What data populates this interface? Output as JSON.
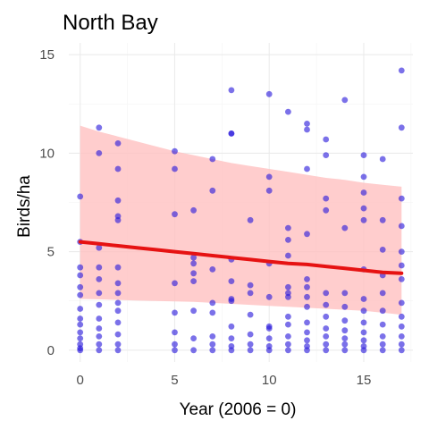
{
  "chart_data": {
    "type": "scatter",
    "title": "North Bay",
    "xlabel": "Year (2006 = 0)",
    "ylabel": "Birds/ha",
    "xlim": [
      -0.6,
      17.6
    ],
    "ylim": [
      -0.6,
      15.6
    ],
    "x_ticks": [
      0,
      5,
      10,
      15
    ],
    "y_ticks": [
      0,
      5,
      10,
      15
    ],
    "x_tick_labels": [
      "0",
      "5",
      "10",
      "15"
    ],
    "y_tick_labels": [
      "0",
      "5",
      "10",
      "15"
    ],
    "grid": true,
    "legend": "none",
    "colors": {
      "points": "#2a1adb",
      "trend_line": "#e61212",
      "ribbon": "#ffc0c0"
    },
    "trend": {
      "x": [
        0,
        1,
        2,
        3,
        4,
        5,
        6,
        7,
        8,
        9,
        10,
        11,
        12,
        13,
        14,
        15,
        16,
        17
      ],
      "fit": [
        5.5,
        5.4,
        5.3,
        5.2,
        5.1,
        5.0,
        4.9,
        4.8,
        4.7,
        4.6,
        4.5,
        4.4,
        4.35,
        4.25,
        4.15,
        4.05,
        3.95,
        3.9
      ],
      "lower": [
        2.6,
        2.58,
        2.55,
        2.52,
        2.5,
        2.47,
        2.45,
        2.4,
        2.35,
        2.3,
        2.25,
        2.2,
        2.15,
        2.1,
        2.05,
        2.0,
        1.9,
        1.8
      ],
      "upper": [
        11.4,
        11.1,
        10.85,
        10.6,
        10.35,
        10.1,
        9.9,
        9.7,
        9.5,
        9.35,
        9.2,
        9.05,
        8.9,
        8.75,
        8.65,
        8.5,
        8.4,
        8.3
      ]
    },
    "points": [
      {
        "x": 0,
        "y": 0.0
      },
      {
        "x": 0,
        "y": 0.1
      },
      {
        "x": 0,
        "y": 0.3
      },
      {
        "x": 0,
        "y": 0.6
      },
      {
        "x": 0,
        "y": 0.9
      },
      {
        "x": 0,
        "y": 1.3
      },
      {
        "x": 0,
        "y": 1.6
      },
      {
        "x": 0,
        "y": 2.1
      },
      {
        "x": 0,
        "y": 2.8
      },
      {
        "x": 0,
        "y": 3.2
      },
      {
        "x": 0,
        "y": 3.8
      },
      {
        "x": 0,
        "y": 4.2
      },
      {
        "x": 0,
        "y": 5.5
      },
      {
        "x": 0,
        "y": 7.8
      },
      {
        "x": 1,
        "y": 0.0
      },
      {
        "x": 1,
        "y": 0.3
      },
      {
        "x": 1,
        "y": 0.7
      },
      {
        "x": 1,
        "y": 1.1
      },
      {
        "x": 1,
        "y": 1.6
      },
      {
        "x": 1,
        "y": 2.3
      },
      {
        "x": 1,
        "y": 2.9
      },
      {
        "x": 1,
        "y": 3.6
      },
      {
        "x": 1,
        "y": 4.2
      },
      {
        "x": 1,
        "y": 5.2
      },
      {
        "x": 1,
        "y": 10.0
      },
      {
        "x": 1,
        "y": 11.3
      },
      {
        "x": 2,
        "y": 0.0
      },
      {
        "x": 2,
        "y": 0.3
      },
      {
        "x": 2,
        "y": 0.8
      },
      {
        "x": 2,
        "y": 1.4
      },
      {
        "x": 2,
        "y": 2.0
      },
      {
        "x": 2,
        "y": 2.4
      },
      {
        "x": 2,
        "y": 2.9
      },
      {
        "x": 2,
        "y": 3.4
      },
      {
        "x": 2,
        "y": 4.2
      },
      {
        "x": 2,
        "y": 6.6
      },
      {
        "x": 2,
        "y": 6.8
      },
      {
        "x": 2,
        "y": 7.6
      },
      {
        "x": 2,
        "y": 9.2
      },
      {
        "x": 2,
        "y": 10.5
      },
      {
        "x": 5,
        "y": 0.0
      },
      {
        "x": 5,
        "y": 0.3
      },
      {
        "x": 5,
        "y": 0.9
      },
      {
        "x": 5,
        "y": 1.9
      },
      {
        "x": 5,
        "y": 3.4
      },
      {
        "x": 5,
        "y": 6.9
      },
      {
        "x": 5,
        "y": 9.2
      },
      {
        "x": 5,
        "y": 10.1
      },
      {
        "x": 6,
        "y": 0.0
      },
      {
        "x": 6,
        "y": 0.6
      },
      {
        "x": 6,
        "y": 2.0
      },
      {
        "x": 6,
        "y": 3.5
      },
      {
        "x": 6,
        "y": 3.9
      },
      {
        "x": 6,
        "y": 4.4
      },
      {
        "x": 6,
        "y": 4.7
      },
      {
        "x": 6,
        "y": 7.1
      },
      {
        "x": 7,
        "y": 0.0
      },
      {
        "x": 7,
        "y": 0.3
      },
      {
        "x": 7,
        "y": 0.7
      },
      {
        "x": 7,
        "y": 1.9
      },
      {
        "x": 7,
        "y": 2.4
      },
      {
        "x": 7,
        "y": 4.1
      },
      {
        "x": 7,
        "y": 8.1
      },
      {
        "x": 7,
        "y": 9.7
      },
      {
        "x": 8,
        "y": 0.0
      },
      {
        "x": 8,
        "y": 0.2
      },
      {
        "x": 8,
        "y": 0.6
      },
      {
        "x": 8,
        "y": 1.2
      },
      {
        "x": 8,
        "y": 2.5
      },
      {
        "x": 8,
        "y": 2.6
      },
      {
        "x": 8,
        "y": 3.5
      },
      {
        "x": 8,
        "y": 4.6
      },
      {
        "x": 8,
        "y": 11.0
      },
      {
        "x": 8,
        "y": 11.0
      },
      {
        "x": 8,
        "y": 13.2
      },
      {
        "x": 9,
        "y": 0.0
      },
      {
        "x": 9,
        "y": 0.3
      },
      {
        "x": 9,
        "y": 0.8
      },
      {
        "x": 9,
        "y": 1.8
      },
      {
        "x": 9,
        "y": 2.9
      },
      {
        "x": 9,
        "y": 3.3
      },
      {
        "x": 9,
        "y": 6.6
      },
      {
        "x": 10,
        "y": 0.0
      },
      {
        "x": 10,
        "y": 0.2
      },
      {
        "x": 10,
        "y": 0.6
      },
      {
        "x": 10,
        "y": 1.1
      },
      {
        "x": 10,
        "y": 1.2
      },
      {
        "x": 10,
        "y": 2.7
      },
      {
        "x": 10,
        "y": 4.4
      },
      {
        "x": 10,
        "y": 8.1
      },
      {
        "x": 10,
        "y": 8.8
      },
      {
        "x": 10,
        "y": 13.0
      },
      {
        "x": 11,
        "y": 0.0
      },
      {
        "x": 11,
        "y": 0.3
      },
      {
        "x": 11,
        "y": 0.7
      },
      {
        "x": 11,
        "y": 1.3
      },
      {
        "x": 11,
        "y": 1.7
      },
      {
        "x": 11,
        "y": 2.7
      },
      {
        "x": 11,
        "y": 2.9
      },
      {
        "x": 11,
        "y": 3.2
      },
      {
        "x": 11,
        "y": 4.8
      },
      {
        "x": 11,
        "y": 5.6
      },
      {
        "x": 11,
        "y": 6.2
      },
      {
        "x": 11,
        "y": 12.1
      },
      {
        "x": 12,
        "y": 0.0
      },
      {
        "x": 12,
        "y": 0.2
      },
      {
        "x": 12,
        "y": 0.5
      },
      {
        "x": 12,
        "y": 0.9
      },
      {
        "x": 12,
        "y": 1.4
      },
      {
        "x": 12,
        "y": 2.2
      },
      {
        "x": 12,
        "y": 2.7
      },
      {
        "x": 12,
        "y": 3.2
      },
      {
        "x": 12,
        "y": 3.6
      },
      {
        "x": 12,
        "y": 5.9
      },
      {
        "x": 12,
        "y": 9.2
      },
      {
        "x": 12,
        "y": 11.2
      },
      {
        "x": 12,
        "y": 11.5
      },
      {
        "x": 13,
        "y": 0.0
      },
      {
        "x": 13,
        "y": 0.3
      },
      {
        "x": 13,
        "y": 0.7
      },
      {
        "x": 13,
        "y": 1.1
      },
      {
        "x": 13,
        "y": 1.7
      },
      {
        "x": 13,
        "y": 2.3
      },
      {
        "x": 13,
        "y": 2.9
      },
      {
        "x": 13,
        "y": 7.1
      },
      {
        "x": 13,
        "y": 7.7
      },
      {
        "x": 13,
        "y": 9.9
      },
      {
        "x": 13,
        "y": 10.7
      },
      {
        "x": 14,
        "y": 0.0
      },
      {
        "x": 14,
        "y": 0.3
      },
      {
        "x": 14,
        "y": 0.6
      },
      {
        "x": 14,
        "y": 1.0
      },
      {
        "x": 14,
        "y": 1.5
      },
      {
        "x": 14,
        "y": 2.2
      },
      {
        "x": 14,
        "y": 2.9
      },
      {
        "x": 14,
        "y": 6.2
      },
      {
        "x": 14,
        "y": 12.7
      },
      {
        "x": 15,
        "y": 0.0
      },
      {
        "x": 15,
        "y": 0.2
      },
      {
        "x": 15,
        "y": 0.5
      },
      {
        "x": 15,
        "y": 0.9
      },
      {
        "x": 15,
        "y": 1.4
      },
      {
        "x": 15,
        "y": 2.0
      },
      {
        "x": 15,
        "y": 2.6
      },
      {
        "x": 15,
        "y": 4.1
      },
      {
        "x": 15,
        "y": 6.6
      },
      {
        "x": 15,
        "y": 7.2
      },
      {
        "x": 15,
        "y": 8.0
      },
      {
        "x": 15,
        "y": 8.8
      },
      {
        "x": 15,
        "y": 9.9
      },
      {
        "x": 16,
        "y": 0.0
      },
      {
        "x": 16,
        "y": 0.3
      },
      {
        "x": 16,
        "y": 0.7
      },
      {
        "x": 16,
        "y": 1.3
      },
      {
        "x": 16,
        "y": 2.0
      },
      {
        "x": 16,
        "y": 2.9
      },
      {
        "x": 16,
        "y": 3.8
      },
      {
        "x": 16,
        "y": 5.1
      },
      {
        "x": 16,
        "y": 6.6
      },
      {
        "x": 16,
        "y": 9.7
      },
      {
        "x": 17,
        "y": 0.0
      },
      {
        "x": 17,
        "y": 0.3
      },
      {
        "x": 17,
        "y": 0.7
      },
      {
        "x": 17,
        "y": 1.2
      },
      {
        "x": 17,
        "y": 1.7
      },
      {
        "x": 17,
        "y": 2.4
      },
      {
        "x": 17,
        "y": 3.6
      },
      {
        "x": 17,
        "y": 4.3
      },
      {
        "x": 17,
        "y": 5.0
      },
      {
        "x": 17,
        "y": 6.3
      },
      {
        "x": 17,
        "y": 7.7
      },
      {
        "x": 17,
        "y": 11.3
      },
      {
        "x": 17,
        "y": 14.2
      }
    ]
  }
}
